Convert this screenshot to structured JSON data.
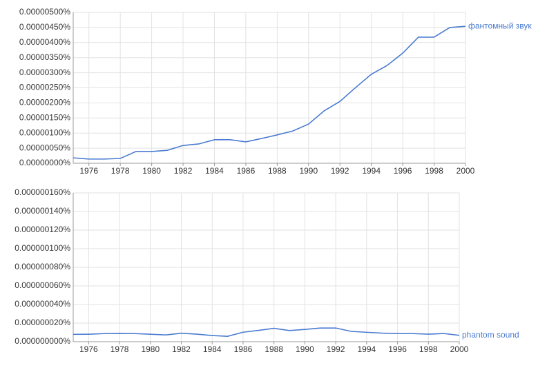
{
  "chart_data": [
    {
      "type": "line",
      "x": [
        1975,
        1976,
        1977,
        1978,
        1979,
        1980,
        1981,
        1982,
        1983,
        1984,
        1985,
        1986,
        1987,
        1988,
        1989,
        1990,
        1991,
        1992,
        1993,
        1994,
        1995,
        1996,
        1997,
        1998,
        1999,
        2000
      ],
      "series": [
        {
          "name": "фантомный звук",
          "color": "#4a7bd0",
          "values": [
            1.8e-07,
            1.4e-07,
            1.4e-07,
            1.6e-07,
            3.9e-07,
            3.9e-07,
            4.3e-07,
            5.9e-07,
            6.4e-07,
            7.8e-07,
            7.8e-07,
            7.1e-07,
            8.2e-07,
            9.4e-07,
            1.07e-06,
            1.3e-06,
            1.74e-06,
            2.05e-06,
            2.51e-06,
            2.95e-06,
            3.24e-06,
            3.65e-06,
            4.18e-06,
            4.18e-06,
            4.5e-06,
            4.54e-06
          ]
        }
      ],
      "xlim": [
        1975,
        2000
      ],
      "xticks": [
        1976,
        1978,
        1980,
        1982,
        1984,
        1986,
        1988,
        1990,
        1992,
        1994,
        1996,
        1998,
        2000
      ],
      "ylim": [
        0,
        5e-06
      ],
      "yticks": [
        {
          "value": 0,
          "label": "0.00000000%"
        },
        {
          "value": 5e-07,
          "label": "0.00000050%"
        },
        {
          "value": 1e-06,
          "label": "0.00000100%"
        },
        {
          "value": 1.5e-06,
          "label": "0.00000150%"
        },
        {
          "value": 2e-06,
          "label": "0.00000200%"
        },
        {
          "value": 2.5e-06,
          "label": "0.00000250%"
        },
        {
          "value": 3e-06,
          "label": "0.00000300%"
        },
        {
          "value": 3.5e-06,
          "label": "0.00000350%"
        },
        {
          "value": 4e-06,
          "label": "0.00000400%"
        },
        {
          "value": 4.5e-06,
          "label": "0.00000450%"
        },
        {
          "value": 5e-06,
          "label": "0.00000500%"
        }
      ],
      "grid": true
    },
    {
      "type": "line",
      "x": [
        1975,
        1976,
        1977,
        1978,
        1979,
        1980,
        1981,
        1982,
        1983,
        1984,
        1985,
        1986,
        1987,
        1988,
        1989,
        1990,
        1991,
        1992,
        1993,
        1994,
        1995,
        1996,
        1997,
        1998,
        1999,
        2000
      ],
      "series": [
        {
          "name": "phantom sound",
          "color": "#4a7bd0",
          "values": [
            7.9e-09,
            8e-09,
            8.7e-09,
            8.9e-09,
            8.7e-09,
            8e-09,
            7.3e-09,
            9.1e-09,
            8.1e-09,
            6.6e-09,
            5.8e-09,
            1.02e-08,
            1.22e-08,
            1.44e-08,
            1.2e-08,
            1.32e-08,
            1.47e-08,
            1.47e-08,
            1.11e-08,
            1.01e-08,
            9.2e-09,
            8.7e-09,
            8.7e-09,
            8.1e-09,
            8.8e-09,
            6.8e-09
          ]
        }
      ],
      "xlim": [
        1975,
        2000
      ],
      "xticks": [
        1976,
        1978,
        1980,
        1982,
        1984,
        1986,
        1988,
        1990,
        1992,
        1994,
        1996,
        1998,
        2000
      ],
      "ylim": [
        0,
        1.6e-07
      ],
      "yticks": [
        {
          "value": 0,
          "label": "0.000000000%"
        },
        {
          "value": 2e-08,
          "label": "0.000000020%"
        },
        {
          "value": 4e-08,
          "label": "0.000000040%"
        },
        {
          "value": 6e-08,
          "label": "0.000000060%"
        },
        {
          "value": 8e-08,
          "label": "0.000000080%"
        },
        {
          "value": 1e-07,
          "label": "0.000000100%"
        },
        {
          "value": 1.2e-07,
          "label": "0.000000120%"
        },
        {
          "value": 1.4e-07,
          "label": "0.000000140%"
        },
        {
          "value": 1.6e-07,
          "label": "0.000000160%"
        }
      ],
      "grid": true
    }
  ]
}
